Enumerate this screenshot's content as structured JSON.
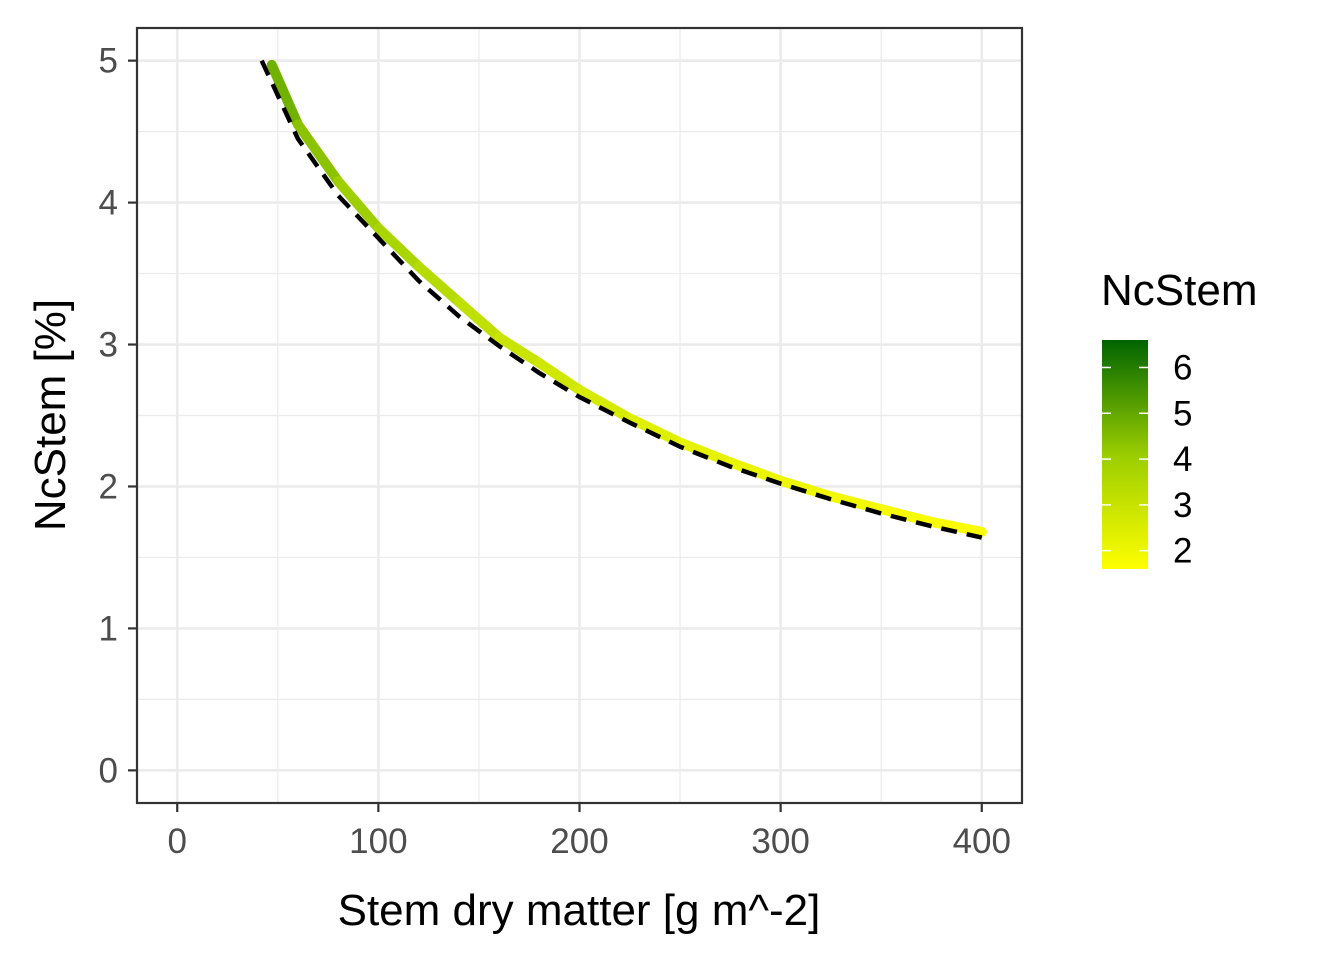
{
  "chart_data": {
    "type": "line",
    "title": "",
    "xlabel": "Stem dry matter [g m^-2]",
    "ylabel": "NcStem [%]",
    "xlim": [
      -20,
      420
    ],
    "ylim": [
      -0.23,
      5.23
    ],
    "x_ticks": [
      0,
      100,
      200,
      300,
      400
    ],
    "x_tick_labels": [
      "0",
      "100",
      "200",
      "300",
      "400"
    ],
    "y_ticks": [
      0,
      1,
      2,
      3,
      4,
      5
    ],
    "y_tick_labels": [
      "0",
      "1",
      "2",
      "3",
      "4",
      "5"
    ],
    "grid": true,
    "legend": {
      "title": "NcStem",
      "placement": "right",
      "type": "colorbar",
      "range": [
        1.6,
        6.6
      ],
      "ticks": [
        2,
        3,
        4,
        5,
        6
      ],
      "tick_labels": [
        "2",
        "3",
        "4",
        "5",
        "6"
      ],
      "color_low": "#ffff00",
      "color_mid": "#9acd00",
      "color_high": "#006400"
    },
    "series": [
      {
        "style": "solid",
        "color_by": "NcStem",
        "x": [
          47,
          60,
          80,
          100,
          120,
          140,
          160,
          180,
          200,
          225,
          250,
          275,
          300,
          325,
          350,
          375,
          400
        ],
        "y": [
          4.97,
          4.55,
          4.15,
          3.82,
          3.55,
          3.3,
          3.05,
          2.87,
          2.68,
          2.48,
          2.31,
          2.17,
          2.04,
          1.93,
          1.84,
          1.75,
          1.68
        ]
      },
      {
        "style": "dashed",
        "color": "#000000",
        "x": [
          42,
          60,
          80,
          100,
          120,
          140,
          160,
          180,
          200,
          225,
          250,
          275,
          300,
          325,
          350,
          375,
          400
        ],
        "y": [
          5.0,
          4.45,
          4.05,
          3.75,
          3.45,
          3.2,
          2.99,
          2.8,
          2.63,
          2.45,
          2.28,
          2.14,
          2.02,
          1.91,
          1.81,
          1.72,
          1.64
        ]
      }
    ]
  }
}
